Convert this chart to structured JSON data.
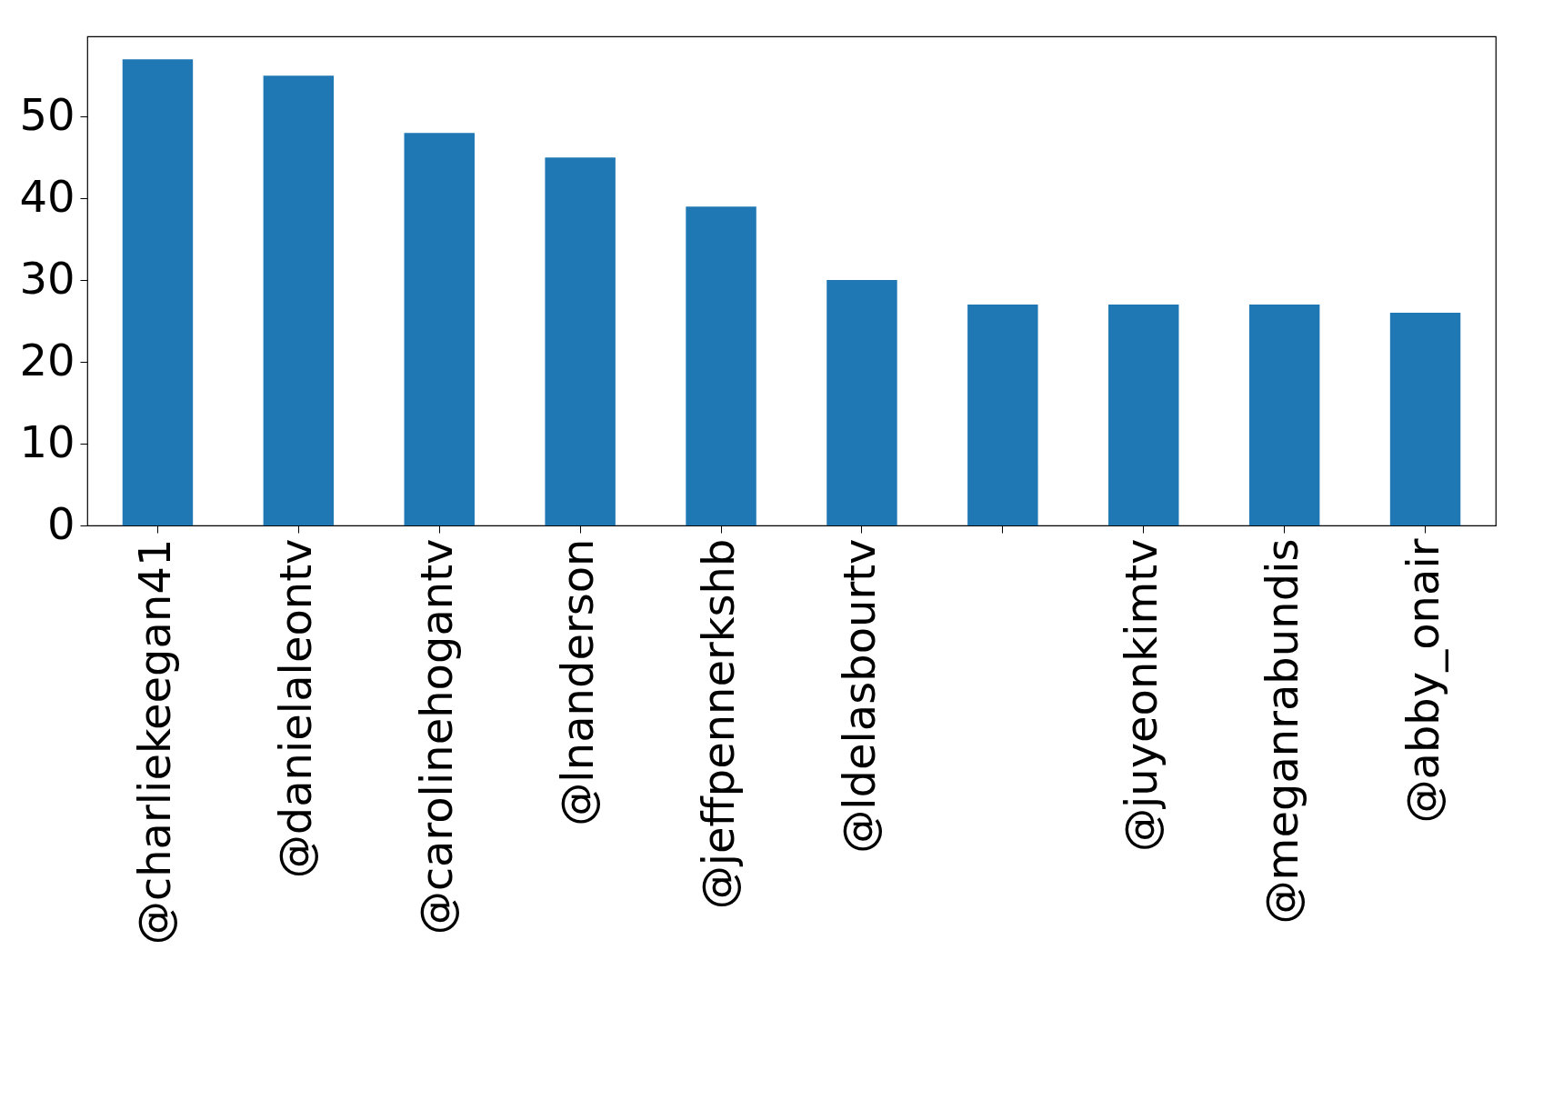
{
  "chart_data": {
    "type": "bar",
    "categories": [
      "@charliekeegan41",
      "@danielaleontv",
      "@carolinehogantv",
      "@lnanderson",
      "@jeffpennerkshb",
      "@ldelasbourtv",
      null,
      "@juyeonkimtv",
      "@meganrabundis",
      "@abby_onair"
    ],
    "values": [
      57,
      55,
      48,
      45,
      39,
      30,
      27,
      27,
      27,
      26
    ],
    "color": "#1f77b4",
    "ylim": [
      0,
      59.8
    ],
    "yticks": [
      0,
      10,
      20,
      30,
      40,
      50
    ],
    "grid": false,
    "legend": false
  }
}
